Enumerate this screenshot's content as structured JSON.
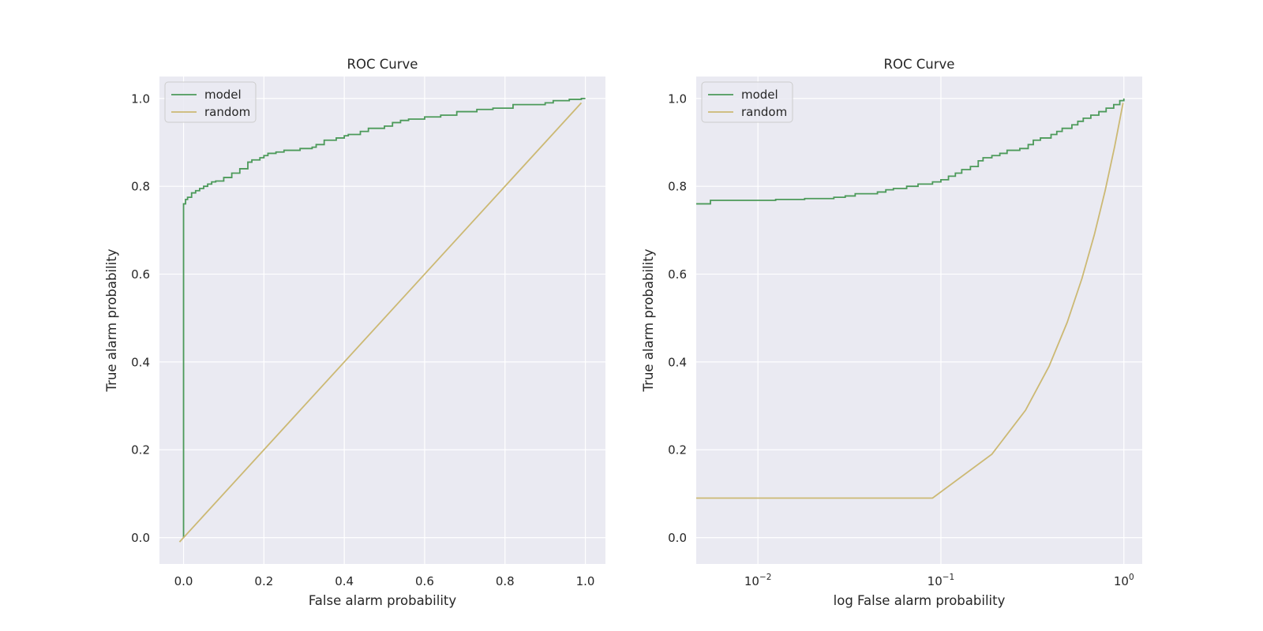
{
  "chart_data": [
    {
      "type": "line",
      "title": "ROC Curve",
      "xlabel": "False alarm probability",
      "ylabel": "True alarm probability",
      "xscale": "linear",
      "xlim": [
        -0.06,
        1.05
      ],
      "ylim": [
        -0.06,
        1.05
      ],
      "xticks": [
        0.0,
        0.2,
        0.4,
        0.6,
        0.8,
        1.0
      ],
      "xtick_labels": [
        "0.0",
        "0.2",
        "0.4",
        "0.6",
        "0.8",
        "1.0"
      ],
      "yticks": [
        0.0,
        0.2,
        0.4,
        0.6,
        0.8,
        1.0
      ],
      "ytick_labels": [
        "0.0",
        "0.2",
        "0.4",
        "0.6",
        "0.8",
        "1.0"
      ],
      "grid": true,
      "legend_position": "top-left",
      "series": [
        {
          "name": "model",
          "color": "#4c9a5a",
          "step": true,
          "x": [
            0.0,
            0.0,
            0.005,
            0.01,
            0.02,
            0.03,
            0.04,
            0.05,
            0.06,
            0.07,
            0.08,
            0.1,
            0.12,
            0.14,
            0.16,
            0.17,
            0.19,
            0.2,
            0.21,
            0.23,
            0.25,
            0.29,
            0.32,
            0.33,
            0.35,
            0.38,
            0.4,
            0.41,
            0.44,
            0.46,
            0.5,
            0.52,
            0.54,
            0.56,
            0.6,
            0.64,
            0.68,
            0.73,
            0.77,
            0.82,
            0.9,
            0.92,
            0.96,
            0.99,
            1.0
          ],
          "y": [
            0.0,
            0.76,
            0.77,
            0.775,
            0.785,
            0.79,
            0.795,
            0.8,
            0.805,
            0.81,
            0.812,
            0.82,
            0.83,
            0.84,
            0.855,
            0.86,
            0.865,
            0.87,
            0.875,
            0.878,
            0.882,
            0.886,
            0.889,
            0.895,
            0.905,
            0.91,
            0.915,
            0.918,
            0.925,
            0.932,
            0.937,
            0.945,
            0.95,
            0.953,
            0.958,
            0.962,
            0.97,
            0.975,
            0.978,
            0.986,
            0.99,
            0.995,
            0.998,
            1.0,
            1.0
          ]
        },
        {
          "name": "random",
          "color": "#ccb974",
          "step": false,
          "x": [
            -0.01,
            0.99
          ],
          "y": [
            -0.01,
            0.99
          ]
        }
      ]
    },
    {
      "type": "line",
      "title": "ROC Curve",
      "xlabel": "log False alarm probability",
      "ylabel": "True alarm probability",
      "xscale": "log",
      "xlim": [
        0.0046,
        1.26
      ],
      "ylim": [
        -0.06,
        1.05
      ],
      "xticks": [
        0.01,
        0.1,
        1.0
      ],
      "xtick_labels": [
        {
          "base": "10",
          "exp": "−2"
        },
        {
          "base": "10",
          "exp": "−1"
        },
        {
          "base": "10",
          "exp": "0"
        }
      ],
      "yticks": [
        0.0,
        0.2,
        0.4,
        0.6,
        0.8,
        1.0
      ],
      "ytick_labels": [
        "0.0",
        "0.2",
        "0.4",
        "0.6",
        "0.8",
        "1.0"
      ],
      "grid": true,
      "legend_position": "top-left",
      "series": [
        {
          "name": "model",
          "color": "#4c9a5a",
          "step": true,
          "x": [
            0.0046,
            0.0055,
            0.0125,
            0.018,
            0.026,
            0.03,
            0.034,
            0.045,
            0.05,
            0.055,
            0.065,
            0.075,
            0.09,
            0.1,
            0.11,
            0.12,
            0.13,
            0.145,
            0.16,
            0.17,
            0.19,
            0.21,
            0.23,
            0.27,
            0.3,
            0.32,
            0.35,
            0.4,
            0.43,
            0.46,
            0.52,
            0.56,
            0.6,
            0.66,
            0.73,
            0.8,
            0.88,
            0.95,
            1.0
          ],
          "y": [
            0.76,
            0.768,
            0.77,
            0.772,
            0.775,
            0.778,
            0.783,
            0.787,
            0.792,
            0.795,
            0.8,
            0.805,
            0.81,
            0.815,
            0.823,
            0.83,
            0.838,
            0.845,
            0.858,
            0.865,
            0.87,
            0.875,
            0.882,
            0.886,
            0.895,
            0.905,
            0.91,
            0.918,
            0.925,
            0.932,
            0.94,
            0.948,
            0.955,
            0.962,
            0.97,
            0.978,
            0.986,
            0.995,
            1.0
          ]
        },
        {
          "name": "random",
          "color": "#ccb974",
          "step": false,
          "x": [
            0.0046,
            0.09,
            0.19,
            0.29,
            0.39,
            0.49,
            0.59,
            0.69,
            0.79,
            0.89,
            0.99
          ],
          "y": [
            0.09,
            0.09,
            0.19,
            0.29,
            0.39,
            0.49,
            0.59,
            0.69,
            0.79,
            0.89,
            0.99
          ]
        }
      ]
    }
  ]
}
